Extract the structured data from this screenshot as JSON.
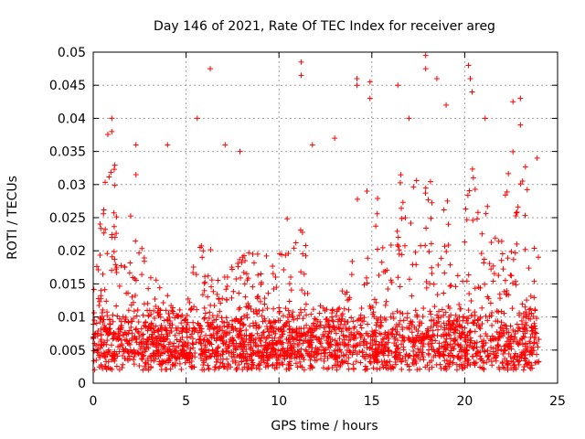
{
  "chart_data": {
    "type": "scatter",
    "title": "Day 146 of 2021, Rate Of TEC Index for receiver areg",
    "xlabel": "GPS time / hours",
    "ylabel": "ROTI / TECUs",
    "xlim": [
      0,
      25
    ],
    "ylim": [
      0,
      0.05
    ],
    "xticks": [
      0,
      5,
      10,
      15,
      20,
      25
    ],
    "yticks": [
      0,
      0.005,
      0.01,
      0.015,
      0.02,
      0.025,
      0.03,
      0.035,
      0.04,
      0.045,
      0.05
    ],
    "xtick_labels": [
      "0",
      "5",
      "10",
      "15",
      "20",
      "25"
    ],
    "ytick_labels": [
      "0",
      "0.005",
      "0.01",
      "0.015",
      "0.02",
      "0.025",
      "0.03",
      "0.035",
      "0.04",
      "0.045",
      "0.05"
    ],
    "grid": true,
    "marker": "+",
    "series_color": "#ff0000",
    "data_x_range": [
      0,
      24
    ],
    "baseline_band": [
      0.002,
      0.012
    ],
    "notable_points": [
      {
        "x": 1.0,
        "y": 0.04
      },
      {
        "x": 1.0,
        "y": 0.038
      },
      {
        "x": 2.3,
        "y": 0.036
      },
      {
        "x": 4.0,
        "y": 0.036
      },
      {
        "x": 5.6,
        "y": 0.04
      },
      {
        "x": 6.3,
        "y": 0.0475
      },
      {
        "x": 7.1,
        "y": 0.036
      },
      {
        "x": 7.9,
        "y": 0.035
      },
      {
        "x": 11.2,
        "y": 0.0485
      },
      {
        "x": 11.2,
        "y": 0.0465
      },
      {
        "x": 11.8,
        "y": 0.036
      },
      {
        "x": 13.0,
        "y": 0.037
      },
      {
        "x": 14.2,
        "y": 0.046
      },
      {
        "x": 14.2,
        "y": 0.045
      },
      {
        "x": 14.9,
        "y": 0.0455
      },
      {
        "x": 14.9,
        "y": 0.043
      },
      {
        "x": 16.4,
        "y": 0.045
      },
      {
        "x": 17.0,
        "y": 0.04
      },
      {
        "x": 17.9,
        "y": 0.0495
      },
      {
        "x": 17.9,
        "y": 0.0475
      },
      {
        "x": 18.5,
        "y": 0.046
      },
      {
        "x": 19.0,
        "y": 0.042
      },
      {
        "x": 20.2,
        "y": 0.048
      },
      {
        "x": 20.3,
        "y": 0.046
      },
      {
        "x": 20.4,
        "y": 0.044
      },
      {
        "x": 21.1,
        "y": 0.04
      },
      {
        "x": 22.6,
        "y": 0.0425
      },
      {
        "x": 23.0,
        "y": 0.043
      },
      {
        "x": 23.0,
        "y": 0.039
      },
      {
        "x": 23.9,
        "y": 0.034
      }
    ]
  }
}
